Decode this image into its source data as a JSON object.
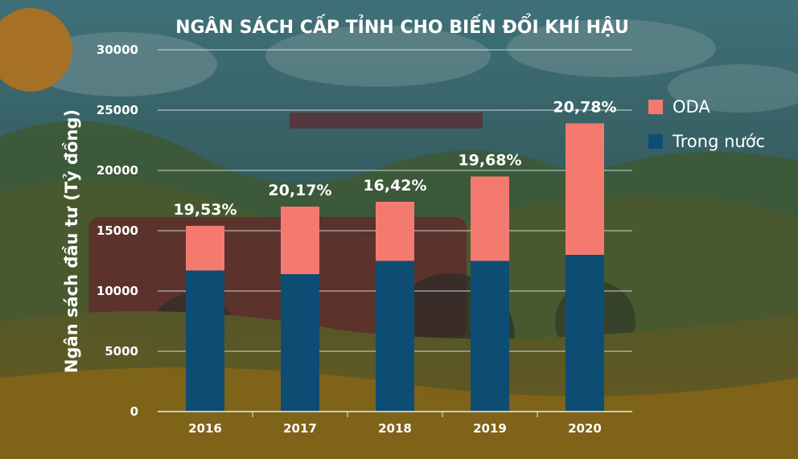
{
  "chart_data": {
    "type": "bar",
    "stacked": true,
    "title": "NGÂN SÁCH CẤP TỈNH CHO BIẾN ĐỔI KHÍ HẬU",
    "ylabel": "Ngân sách đầu tư (Tỷ đồng)",
    "xlabel": "",
    "categories": [
      "2016",
      "2017",
      "2018",
      "2019",
      "2020"
    ],
    "series": [
      {
        "name": "Trong nước",
        "color": "#0e4d73",
        "values": [
          11700,
          11400,
          12500,
          12500,
          13000
        ]
      },
      {
        "name": "ODA",
        "color": "#f47a70",
        "values": [
          3700,
          5600,
          4900,
          7000,
          10900
        ]
      }
    ],
    "bar_labels": [
      "19,53%",
      "20,17%",
      "16,42%",
      "19,68%",
      "20,78%"
    ],
    "yticks": [
      "0",
      "5000",
      "10000",
      "15000",
      "20000",
      "25000",
      "30000"
    ],
    "ylim": [
      0,
      30000
    ],
    "grid": true,
    "legend": {
      "placement": "right",
      "entries": [
        "ODA",
        "Trong nước"
      ]
    }
  }
}
